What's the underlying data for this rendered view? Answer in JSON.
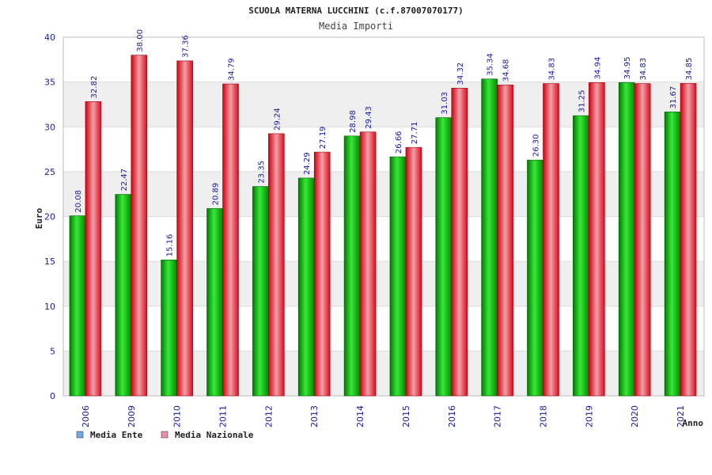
{
  "chart_data": {
    "type": "bar",
    "title": "SCUOLA MATERNA LUCCHINI (c.f.87007070177)",
    "subtitle": "Media Importi",
    "xlabel": "Anno",
    "ylabel": "Euro",
    "ylim": [
      0,
      40
    ],
    "yticks": [
      0,
      5,
      10,
      15,
      20,
      25,
      30,
      35,
      40
    ],
    "grid": true,
    "legend_position": "bottom-left",
    "categories": [
      "2006",
      "2009",
      "2010",
      "2011",
      "2012",
      "2013",
      "2014",
      "2015",
      "2016",
      "2017",
      "2018",
      "2019",
      "2020",
      "2021"
    ],
    "series": [
      {
        "name": "Media Ente",
        "color": "#00b000",
        "values": [
          20.08,
          22.47,
          15.16,
          20.89,
          23.35,
          24.29,
          28.98,
          26.66,
          31.03,
          35.34,
          26.3,
          31.25,
          34.95,
          31.67
        ],
        "labels": [
          "20.08",
          "22.47",
          "15.16",
          "20.89",
          "23.35",
          "24.29",
          "28.98",
          "26.66",
          "31.03",
          "35.34",
          "26.30",
          "31.25",
          "34.95",
          "31.67"
        ]
      },
      {
        "name": "Media Nazionale",
        "color": "#e81020",
        "values": [
          32.82,
          38.0,
          37.36,
          34.79,
          29.24,
          27.19,
          29.43,
          27.71,
          34.32,
          34.68,
          34.83,
          34.94,
          34.83,
          34.85
        ],
        "labels": [
          "32.82",
          "38.00",
          "37.36",
          "34.79",
          "29.24",
          "27.19",
          "29.43",
          "27.71",
          "34.32",
          "34.68",
          "34.83",
          "34.94",
          "34.83",
          "34.85"
        ]
      }
    ],
    "legend_colors": [
      "#6fa8e8",
      "#e88fb0"
    ],
    "colors": {
      "axis_text": "#1a1aa0",
      "label_text": "#1a1aa0",
      "band": "#efefef",
      "grid": "#dcdcdc",
      "frame": "#bdbdbd"
    }
  }
}
